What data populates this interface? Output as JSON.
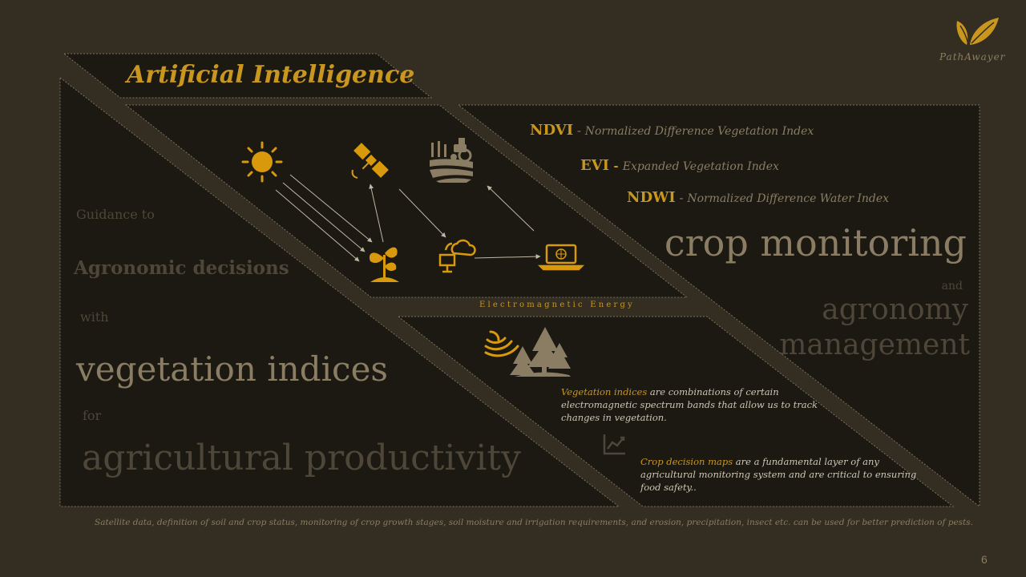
{
  "slide": {
    "title": "Artificial Intelligence",
    "page_number": "6",
    "colors": {
      "background": "#332d22",
      "panel": "#1b1912",
      "accent": "#c9961e",
      "muted_text": "#8a7d63",
      "dim_text": "#4e4638"
    }
  },
  "logo": {
    "brand": "PathAwayer",
    "icon": "leaf-icon"
  },
  "indices": [
    {
      "abbr": "NDVI",
      "sep": " - ",
      "desc": "Normalized Difference Vegetation Index"
    },
    {
      "abbr": "EVI",
      "sep": " - ",
      "desc": "Expanded Vegetation Index"
    },
    {
      "abbr": "NDWI",
      "sep": " - ",
      "desc": "Normalized Difference Water Index"
    }
  ],
  "left": {
    "guidance": "Guidance to",
    "decisions": "Agronomic decisions",
    "with": "with",
    "veg_indices": "vegetation indices",
    "for": "for",
    "productivity": "agricultural productivity"
  },
  "right": {
    "crop_monitoring": "crop monitoring",
    "and": "and",
    "agronomy": "agronomy",
    "management": "management"
  },
  "diagram": {
    "em_energy": "Electromagnetic Energy",
    "icons": [
      "sun-icon",
      "satellite-icon",
      "farm-field-icon",
      "plant-icon",
      "cloud-computing-icon",
      "laptop-icon",
      "forest-signal-icon",
      "chart-trend-icon"
    ]
  },
  "notes": {
    "veg_highlight": "Vegetation indices",
    "veg_line1": " are combinations of certain",
    "veg_line2": "electromagnetic spectrum bands that allow us to track",
    "veg_line3": "changes in vegetation.",
    "crop_highlight": "Crop decision maps",
    "crop_line1": " are a fundamental layer of any",
    "crop_line2": "agricultural monitoring system and are critical to ensuring",
    "crop_line3": "food safety.."
  },
  "footer": {
    "text": "Satellite data, definition of soil and crop status, monitoring of crop growth stages, soil moisture and irrigation requirements, and erosion, precipitation, insect etc. can be used for better prediction of pests."
  }
}
